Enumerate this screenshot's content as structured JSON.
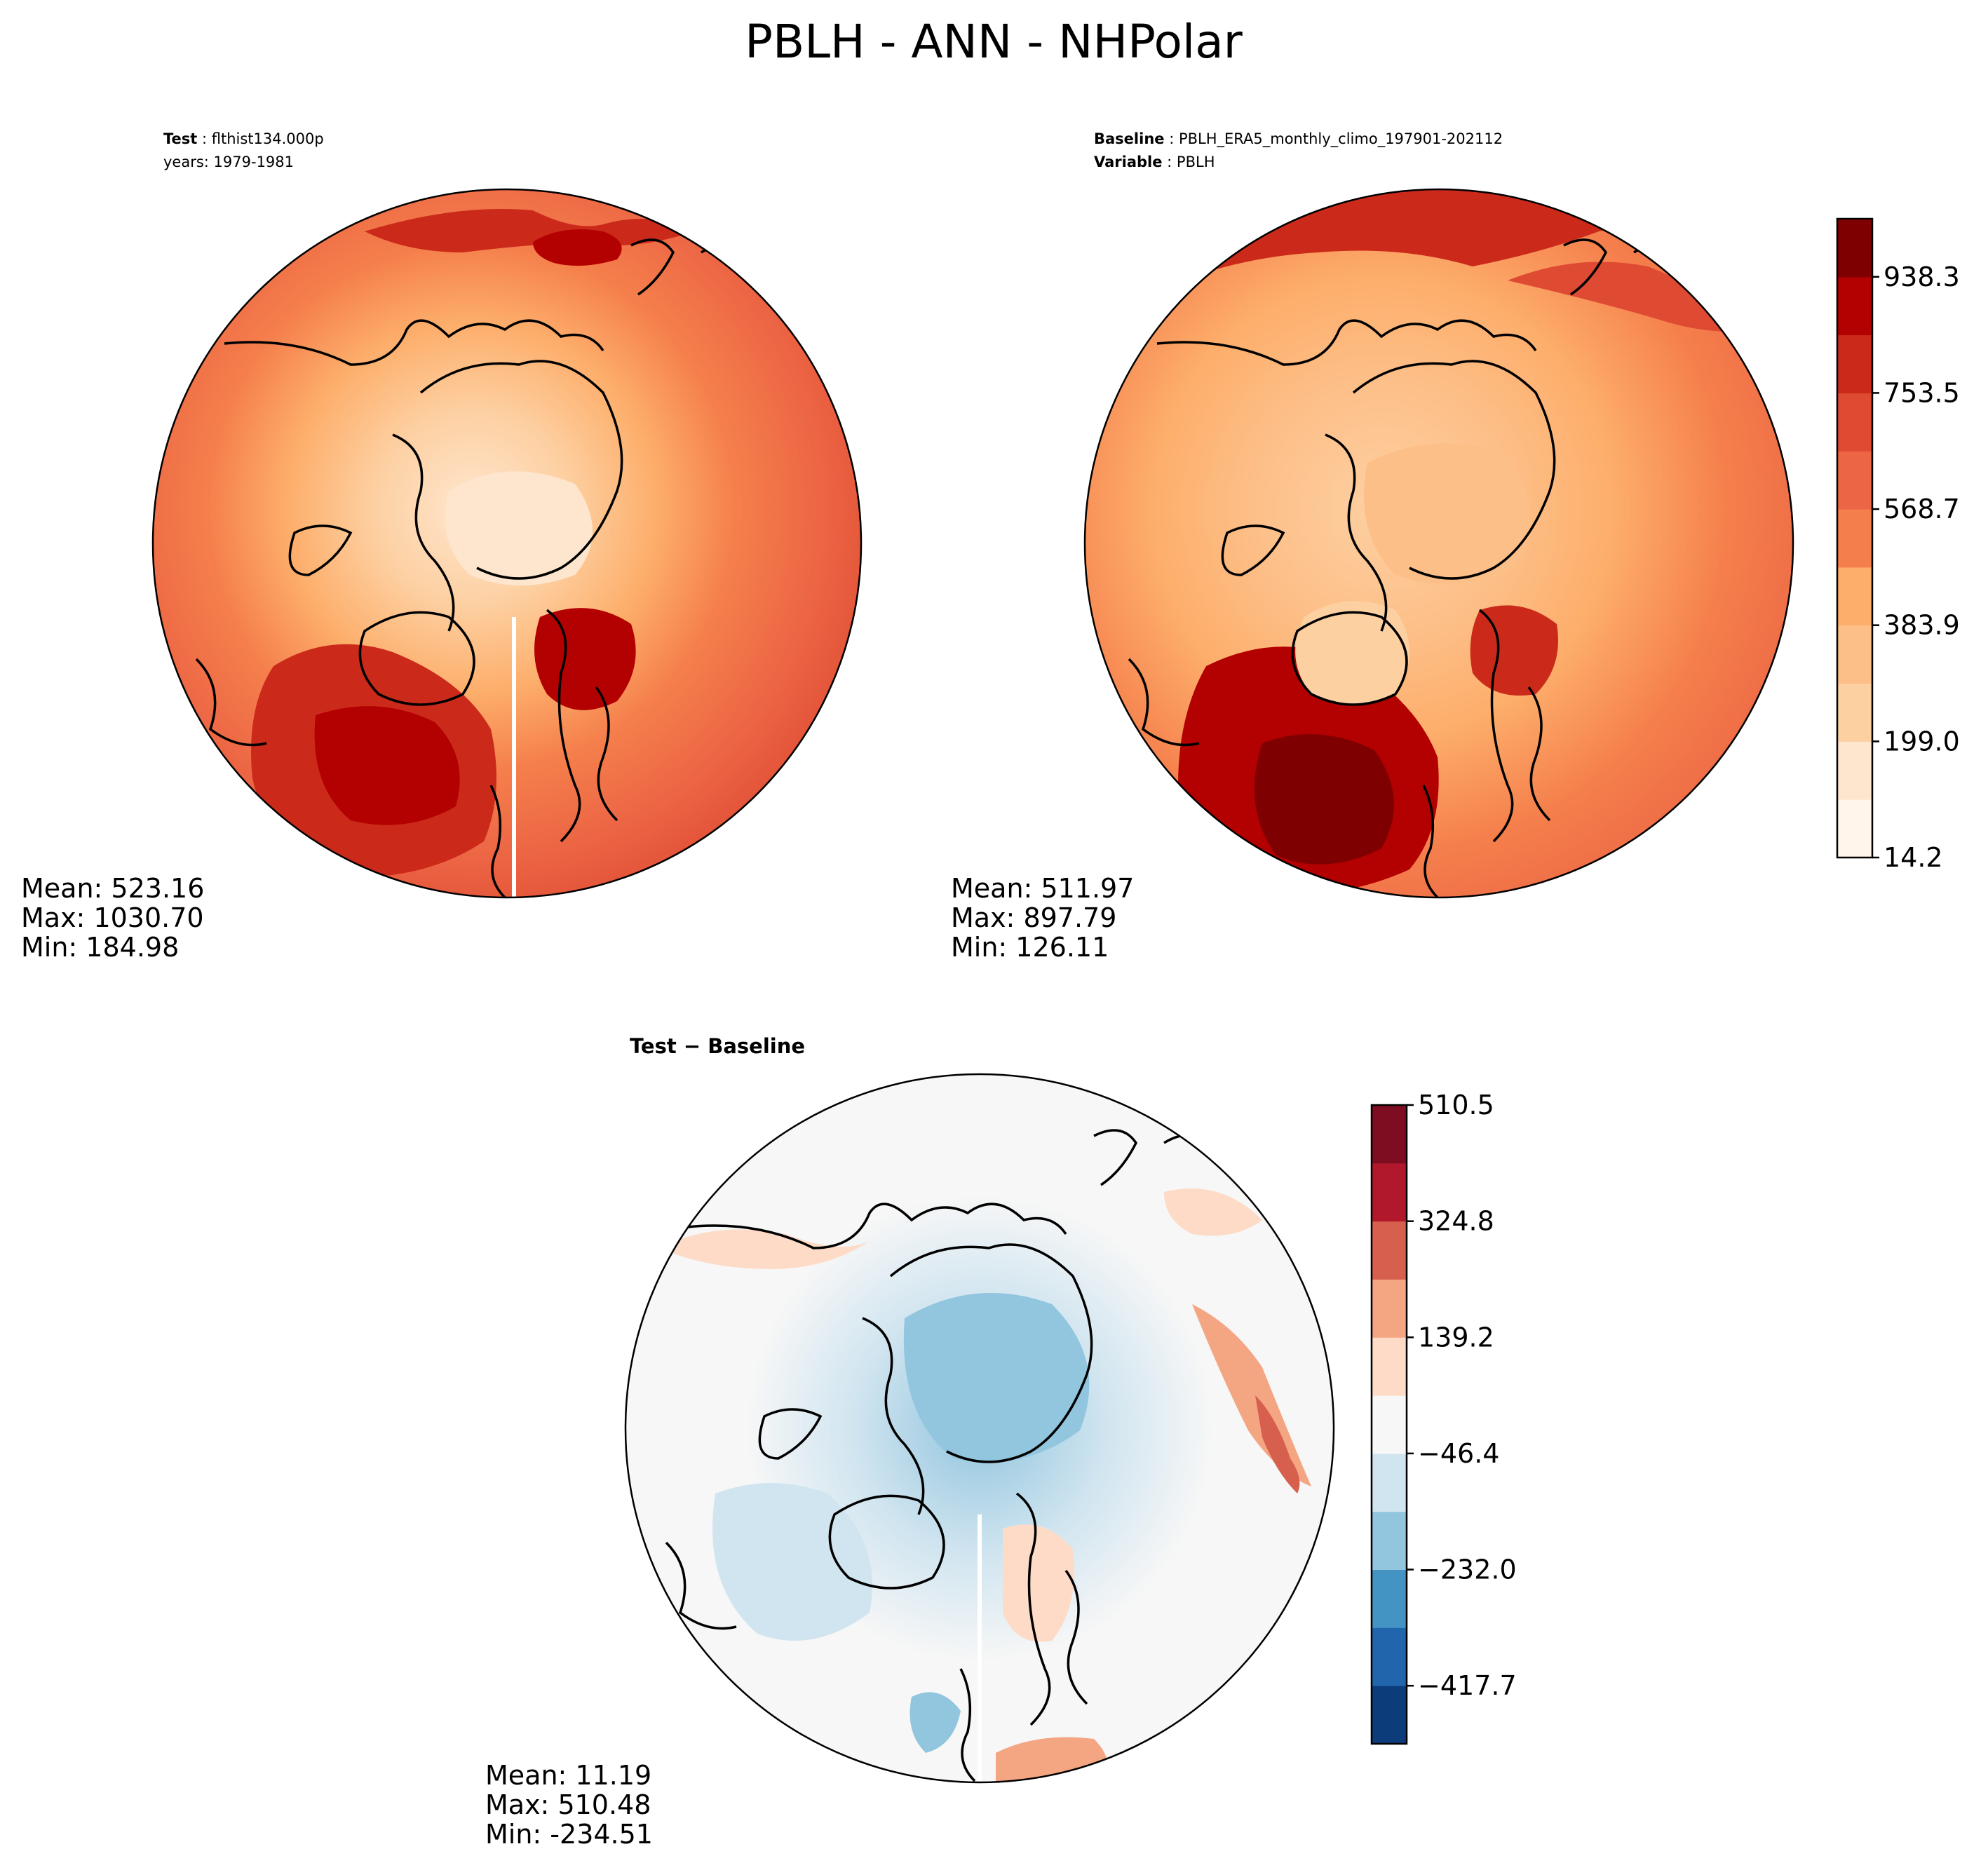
{
  "figure": {
    "title": "PBLH - ANN - NHPolar"
  },
  "panels": {
    "test": {
      "header": {
        "label": "Test",
        "sep": " : ",
        "value": "flthist134.000p",
        "line2": "years: 1979-1981"
      },
      "stats": {
        "mean": "Mean: 523.16",
        "max": "Max: 1030.70",
        "min": "Min: 184.98"
      }
    },
    "baseline": {
      "header": {
        "label1": "Baseline",
        "sep": " : ",
        "value1": "PBLH_ERA5_monthly_climo_197901-202112",
        "label2": "Variable",
        "value2": "PBLH"
      },
      "stats": {
        "mean": "Mean: 511.97",
        "max": "Max: 897.79",
        "min": "Min: 126.11"
      }
    },
    "diff": {
      "header": {
        "label": "Test − Baseline"
      },
      "stats": {
        "mean": "Mean: 11.19",
        "max": "Max: 510.48",
        "min": "Min: -234.51"
      }
    }
  },
  "colorbars": {
    "main": {
      "levels": 11,
      "colors": [
        "#fff5eb",
        "#fee6ce",
        "#fdd0a2",
        "#fdbf88",
        "#fdae6b",
        "#f57f4c",
        "#ec6544",
        "#df4a32",
        "#cb2a1b",
        "#b30000",
        "#7f0000"
      ],
      "tick_labels": [
        "14.2",
        "199.0",
        "383.9",
        "568.7",
        "753.5",
        "938.3"
      ],
      "tick_values": [
        14.2,
        199.0,
        383.9,
        568.7,
        753.5,
        938.3
      ],
      "range": [
        14.2,
        1030.7
      ]
    },
    "diff": {
      "levels": 11,
      "colors": [
        "#0d3c7a",
        "#2166ac",
        "#4393c3",
        "#92c5de",
        "#d1e5f0",
        "#f7f7f7",
        "#fddbc7",
        "#f4a582",
        "#d6604d",
        "#b2182b",
        "#7f0d21"
      ],
      "tick_labels": [
        "510.5",
        "324.8",
        "139.2",
        "−46.4",
        "−232.0",
        "−417.7"
      ],
      "tick_values": [
        510.5,
        324.8,
        139.2,
        -46.4,
        -232.0,
        -417.7
      ],
      "range": [
        -510.5,
        510.5
      ]
    }
  }
}
